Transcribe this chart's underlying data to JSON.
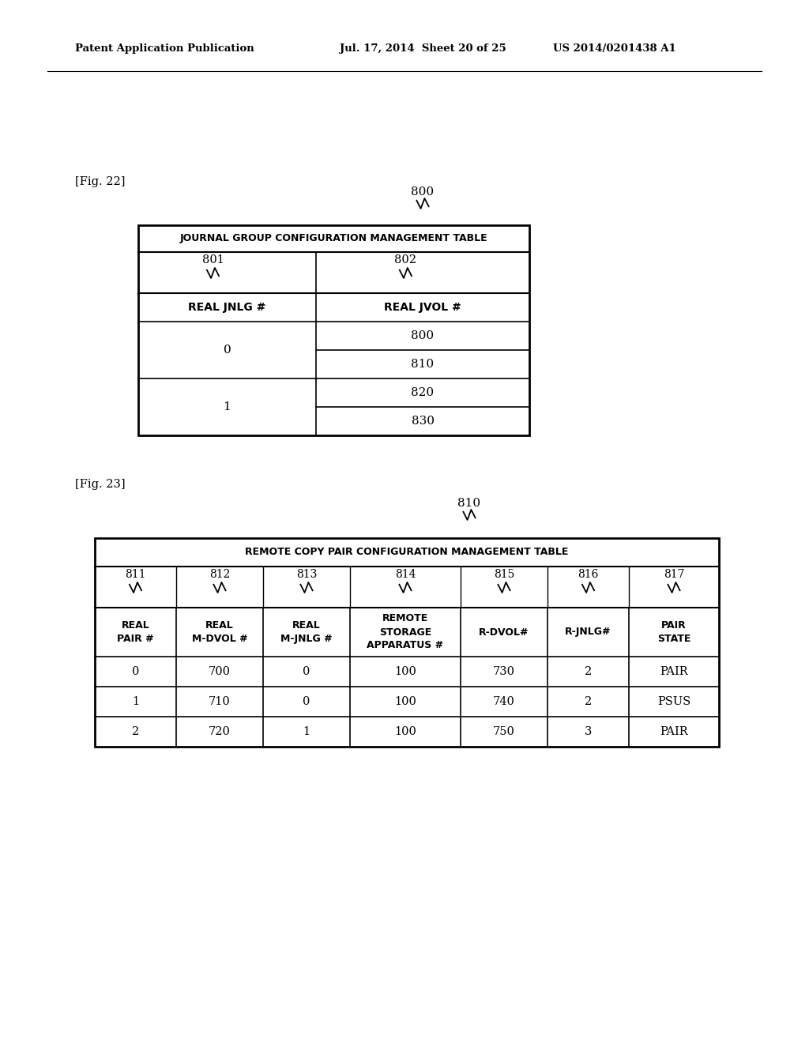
{
  "background_color": "#ffffff",
  "header_left": "Patent Application Publication",
  "header_mid": "Jul. 17, 2014  Sheet 20 of 25",
  "header_right": "US 2014/0201438 A1",
  "fig22_label": "[Fig. 22]",
  "fig23_label": "[Fig. 23]",
  "table1_title": "JOURNAL GROUP CONFIGURATION MANAGEMENT TABLE",
  "table1_label": "800",
  "table1_col_labels": [
    "801",
    "802"
  ],
  "table1_headers": [
    "REAL JNLG #",
    "REAL JVOL #"
  ],
  "table1_col2_vals": [
    "800",
    "810",
    "820",
    "830"
  ],
  "table1_col1_vals": [
    "0",
    "1"
  ],
  "table2_title": "REMOTE COPY PAIR CONFIGURATION MANAGEMENT TABLE",
  "table2_label": "810",
  "table2_col_labels": [
    "811",
    "812",
    "813",
    "814",
    "815",
    "816",
    "817"
  ],
  "table2_headers": [
    "REAL\nPAIR #",
    "REAL\nM-DVOL #",
    "REAL\nM-JNLG #",
    "REMOTE\nSTORAGE\nAPPARATUS #",
    "R-DVOL#",
    "R-JNLG#",
    "PAIR\nSTATE"
  ],
  "table2_data": [
    [
      "0",
      "700",
      "0",
      "100",
      "730",
      "2",
      "PAIR"
    ],
    [
      "1",
      "710",
      "0",
      "100",
      "740",
      "2",
      "PSUS"
    ],
    [
      "2",
      "720",
      "1",
      "100",
      "750",
      "3",
      "PAIR"
    ]
  ]
}
